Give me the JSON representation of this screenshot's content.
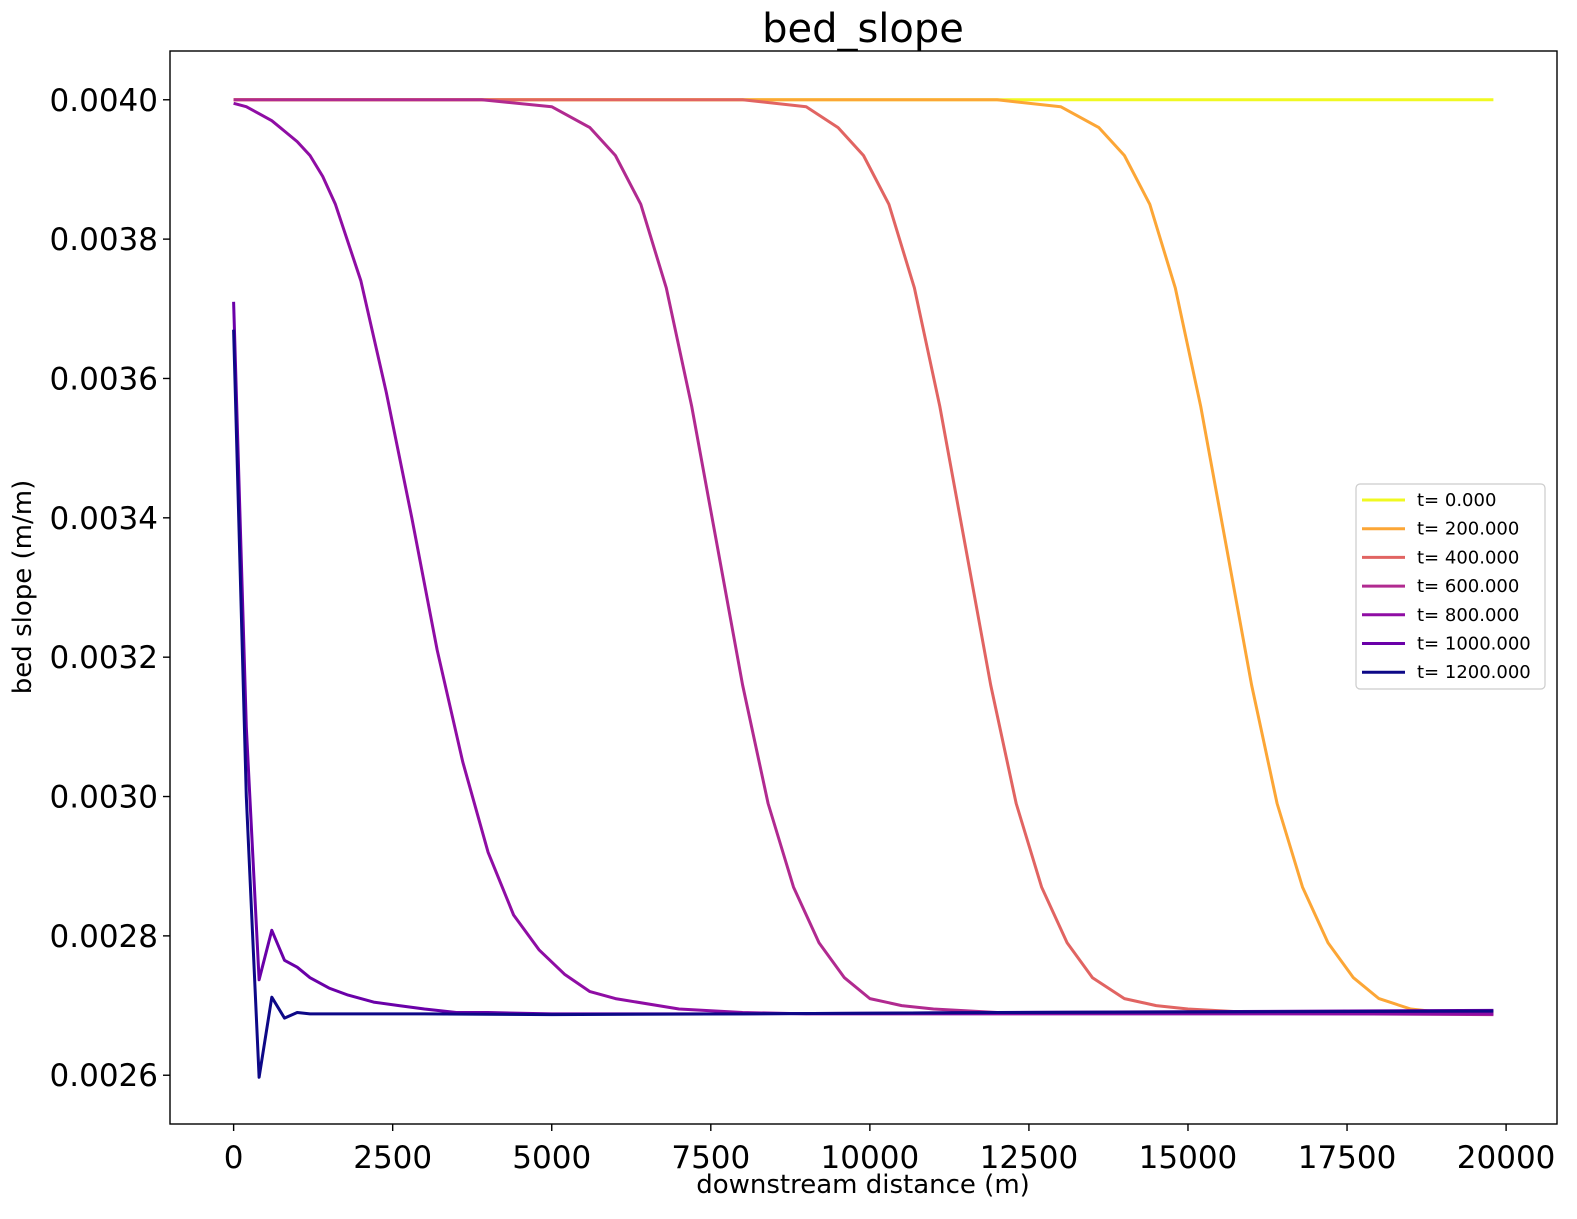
{
  "chart_data": {
    "type": "line",
    "title": "bed_slope",
    "xlabel": "downstream distance (m)",
    "ylabel": "bed slope (m/m)",
    "xlim": [
      -1000,
      20800
    ],
    "ylim": [
      0.00253,
      0.00407
    ],
    "x_ticks": [
      0,
      2500,
      5000,
      7500,
      10000,
      12500,
      15000,
      17500,
      20000
    ],
    "x_tick_labels": [
      "0",
      "2500",
      "5000",
      "7500",
      "10000",
      "12500",
      "15000",
      "17500",
      "20000"
    ],
    "y_ticks": [
      0.0026,
      0.0028,
      0.003,
      0.0032,
      0.0034,
      0.0036,
      0.0038,
      0.004
    ],
    "y_tick_labels": [
      "0.0026",
      "0.0028",
      "0.0030",
      "0.0032",
      "0.0034",
      "0.0036",
      "0.0038",
      "0.0040"
    ],
    "grid": false,
    "legend_position": "center-right",
    "series": [
      {
        "name": "t= 0.000",
        "color": "#f0f921",
        "x": [
          0,
          19800
        ],
        "y": [
          0.004,
          0.004
        ]
      },
      {
        "name": "t= 200.000",
        "color": "#fca636",
        "x": [
          0,
          12000,
          13000,
          13600,
          14000,
          14400,
          14800,
          15200,
          15600,
          16000,
          16400,
          16800,
          17200,
          17600,
          18000,
          18500,
          19000,
          19800
        ],
        "y": [
          0.004,
          0.004,
          0.00399,
          0.00396,
          0.00392,
          0.00385,
          0.00373,
          0.00356,
          0.00336,
          0.00316,
          0.00299,
          0.00287,
          0.00279,
          0.00274,
          0.00271,
          0.002695,
          0.00269,
          0.00269
        ]
      },
      {
        "name": "t= 400.000",
        "color": "#e16462",
        "x": [
          0,
          8000,
          9000,
          9500,
          9900,
          10300,
          10700,
          11100,
          11500,
          11900,
          12300,
          12700,
          13100,
          13500,
          14000,
          14500,
          15000,
          16000,
          17000,
          19800
        ],
        "y": [
          0.004,
          0.004,
          0.00399,
          0.00396,
          0.00392,
          0.00385,
          0.00373,
          0.00356,
          0.00336,
          0.00316,
          0.00299,
          0.00287,
          0.00279,
          0.00274,
          0.00271,
          0.0027,
          0.002695,
          0.00269,
          0.00269,
          0.002688
        ]
      },
      {
        "name": "t= 600.000",
        "color": "#b12a90",
        "x": [
          0,
          3900,
          5000,
          5600,
          6000,
          6400,
          6800,
          7200,
          7600,
          8000,
          8400,
          8800,
          9200,
          9600,
          10000,
          10500,
          11000,
          12000,
          13000,
          19800
        ],
        "y": [
          0.004,
          0.004,
          0.00399,
          0.00396,
          0.00392,
          0.00385,
          0.00373,
          0.00356,
          0.00336,
          0.00316,
          0.00299,
          0.00287,
          0.00279,
          0.00274,
          0.00271,
          0.0027,
          0.002695,
          0.00269,
          0.00269,
          0.002687
        ]
      },
      {
        "name": "t= 800.000",
        "color": "#8f0da4",
        "x": [
          0,
          200,
          400,
          600,
          800,
          1000,
          1200,
          1400,
          1600,
          2000,
          2400,
          2800,
          3200,
          3600,
          4000,
          4400,
          4800,
          5200,
          5600,
          6000,
          7000,
          8000,
          9000,
          19800
        ],
        "y": [
          0.003995,
          0.00399,
          0.00398,
          0.00397,
          0.003955,
          0.00394,
          0.00392,
          0.00389,
          0.00385,
          0.00374,
          0.00358,
          0.0034,
          0.00321,
          0.00305,
          0.00292,
          0.00283,
          0.00278,
          0.002745,
          0.00272,
          0.00271,
          0.002695,
          0.00269,
          0.002688,
          0.002688
        ]
      },
      {
        "name": "t= 1000.000",
        "color": "#6a00a8",
        "x": [
          0,
          200,
          400,
          600,
          800,
          1000,
          1200,
          1500,
          1800,
          2200,
          2600,
          3000,
          3500,
          4000,
          5000,
          6000,
          8000,
          12000,
          19800
        ],
        "y": [
          0.00371,
          0.0031,
          0.002737,
          0.002808,
          0.002765,
          0.002755,
          0.00274,
          0.002725,
          0.002715,
          0.002705,
          0.0027,
          0.002695,
          0.00269,
          0.00269,
          0.002688,
          0.002688,
          0.002688,
          0.00269,
          0.002693
        ]
      },
      {
        "name": "t= 1200.000",
        "color": "#0d0887",
        "x": [
          0,
          200,
          400,
          600,
          800,
          1000,
          1200,
          1400,
          1800,
          2500,
          3000,
          5000,
          8000,
          12000,
          19800
        ],
        "y": [
          0.00367,
          0.003,
          0.002597,
          0.002712,
          0.002682,
          0.00269,
          0.002688,
          0.002688,
          0.002688,
          0.002688,
          0.002688,
          0.002687,
          0.002688,
          0.00269,
          0.002692
        ]
      }
    ]
  }
}
